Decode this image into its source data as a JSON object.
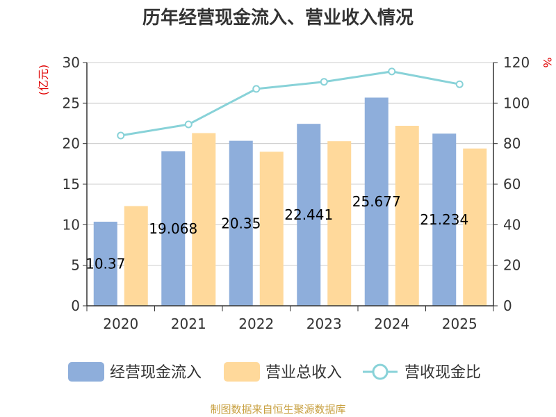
{
  "chart_data": {
    "type": "bar",
    "title": "历年经营现金流入、营业收入情况",
    "categories": [
      "2020",
      "2021",
      "2022",
      "2023",
      "2024",
      "2025"
    ],
    "series": [
      {
        "name": "经营现金流入",
        "type": "bar",
        "axis": "left",
        "color": "#8eaedb",
        "values": [
          10.371,
          19.068,
          20.35,
          22.441,
          25.677,
          21.234
        ],
        "labels": [
          "10.37",
          "19.068",
          "20.35",
          "22.441",
          "25.677",
          "21.234"
        ]
      },
      {
        "name": "营业总收入",
        "type": "bar",
        "axis": "left",
        "color": "#ffd99b",
        "values": [
          12.3,
          21.3,
          19.0,
          20.3,
          22.2,
          19.4
        ]
      },
      {
        "name": "营收现金比",
        "type": "line",
        "axis": "right",
        "color": "#88d2d8",
        "values": [
          84.0,
          89.5,
          107.0,
          110.5,
          115.6,
          109.3
        ]
      }
    ],
    "y_left": {
      "label": "(亿元)",
      "min": 0,
      "max": 30,
      "ticks": [
        0,
        5,
        10,
        15,
        20,
        25,
        30
      ]
    },
    "y_right": {
      "label": "%",
      "min": 0,
      "max": 120,
      "ticks": [
        0,
        20,
        40,
        60,
        80,
        100,
        120
      ]
    },
    "grid": true,
    "legend_position": "bottom"
  },
  "source": "制图数据来自恒生聚源数据库"
}
